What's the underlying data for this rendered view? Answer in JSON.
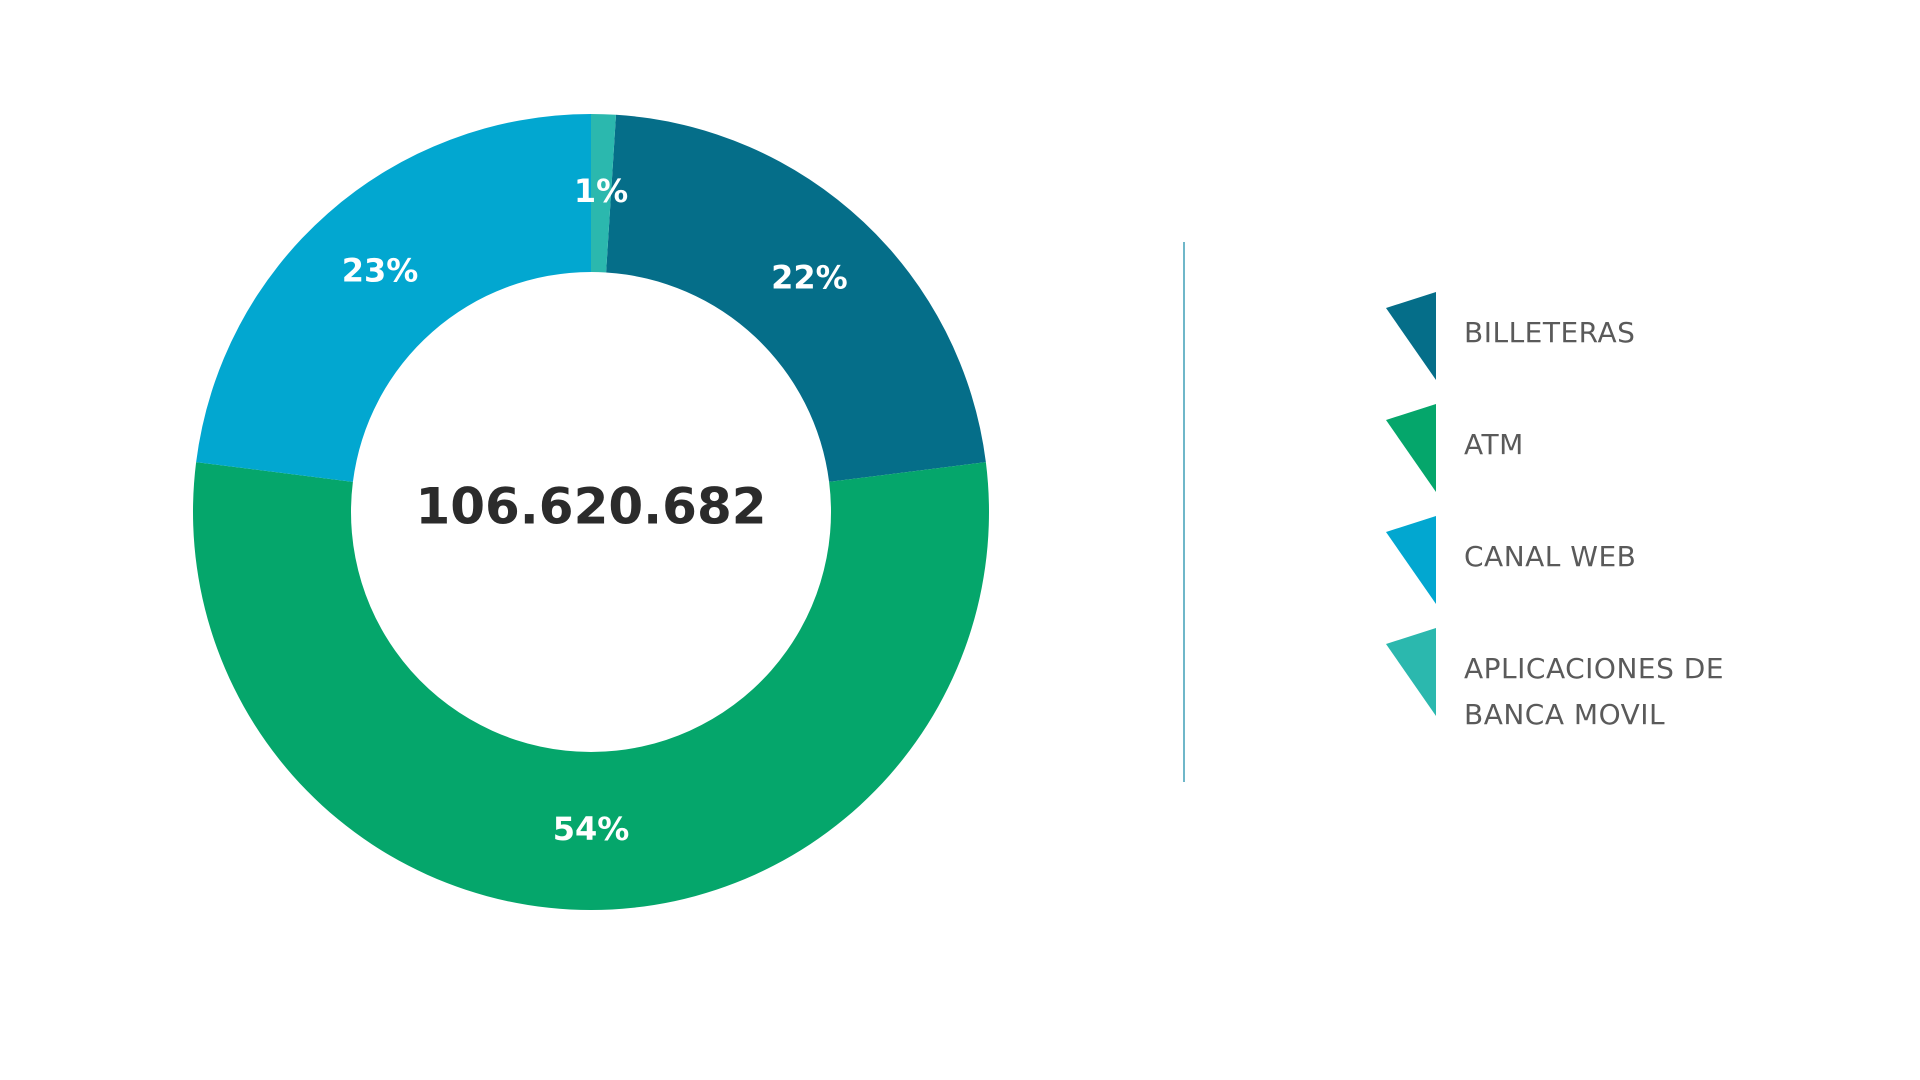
{
  "chart_data": {
    "type": "donut",
    "center_text": "106.620.682",
    "categories": [
      "BILLETERAS",
      "ATM",
      "CANAL WEB",
      "APLICACIONES DE BANCA MOVIL"
    ],
    "values": [
      22,
      54,
      23,
      1
    ],
    "value_labels": [
      "22%",
      "54%",
      "23%",
      "1%"
    ],
    "colors": [
      "#056e89",
      "#05a66b",
      "#02a7d0",
      "#2bb8ae"
    ]
  }
}
